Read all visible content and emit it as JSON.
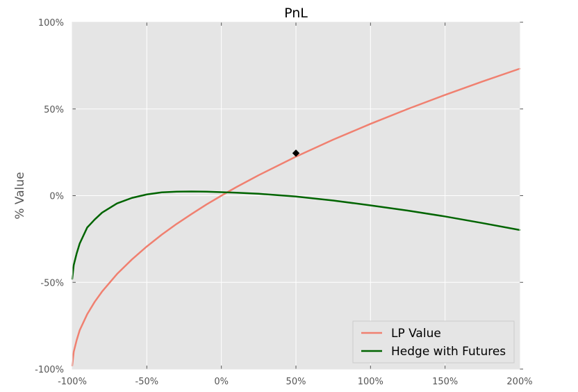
{
  "chart_data": {
    "type": "line",
    "title": "PnL",
    "xlabel": "",
    "ylabel": "% Value",
    "xlim": [
      -100,
      200
    ],
    "ylim": [
      -100,
      100
    ],
    "x_ticks": [
      -100,
      -50,
      0,
      50,
      100,
      150,
      200
    ],
    "x_tick_labels": [
      "-100%",
      "-50%",
      "0%",
      "50%",
      "100%",
      "150%",
      "200%"
    ],
    "y_ticks": [
      100,
      50,
      0,
      -50,
      -100
    ],
    "y_tick_labels": [
      "100%",
      "50%",
      "0%",
      "-50%",
      "-100%"
    ],
    "grid": true,
    "legend_position": "lower-right",
    "background_color": "#e5e5e5",
    "series": [
      {
        "name": "LP Value",
        "color": "#f08070",
        "x": [
          -100,
          -99,
          -97,
          -95,
          -90,
          -85,
          -80,
          -70,
          -60,
          -50,
          -40,
          -30,
          -20,
          -10,
          0,
          10,
          25,
          50,
          75,
          100,
          125,
          150,
          175,
          200
        ],
        "y": [
          -98,
          -90,
          -83.2,
          -77.6,
          -68.4,
          -61.3,
          -55.3,
          -45.2,
          -36.8,
          -29.3,
          -22.5,
          -16.3,
          -10.6,
          -5.1,
          0,
          4.9,
          11.8,
          22.5,
          32.3,
          41.4,
          50,
          58.1,
          65.8,
          73.2
        ]
      },
      {
        "name": "Hedge with Futures",
        "color": "#006400",
        "x": [
          -100,
          -99,
          -97,
          -95,
          -90,
          -85,
          -80,
          -70,
          -60,
          -50,
          -40,
          -30,
          -20,
          -10,
          0,
          10,
          25,
          50,
          75,
          100,
          125,
          150,
          175,
          200
        ],
        "y": [
          -48,
          -40,
          -33.2,
          -27.6,
          -18.4,
          -13.8,
          -9.8,
          -4.5,
          -1.3,
          0.7,
          1.9,
          2.3,
          2.4,
          2.3,
          2.0,
          1.7,
          1.1,
          -0.5,
          -2.8,
          -5.6,
          -8.6,
          -12.0,
          -15.8,
          -19.8
        ]
      }
    ],
    "annotations": [
      {
        "type": "marker",
        "shape": "diamond",
        "color": "#000000",
        "x": 50,
        "y": 24.5
      }
    ]
  }
}
